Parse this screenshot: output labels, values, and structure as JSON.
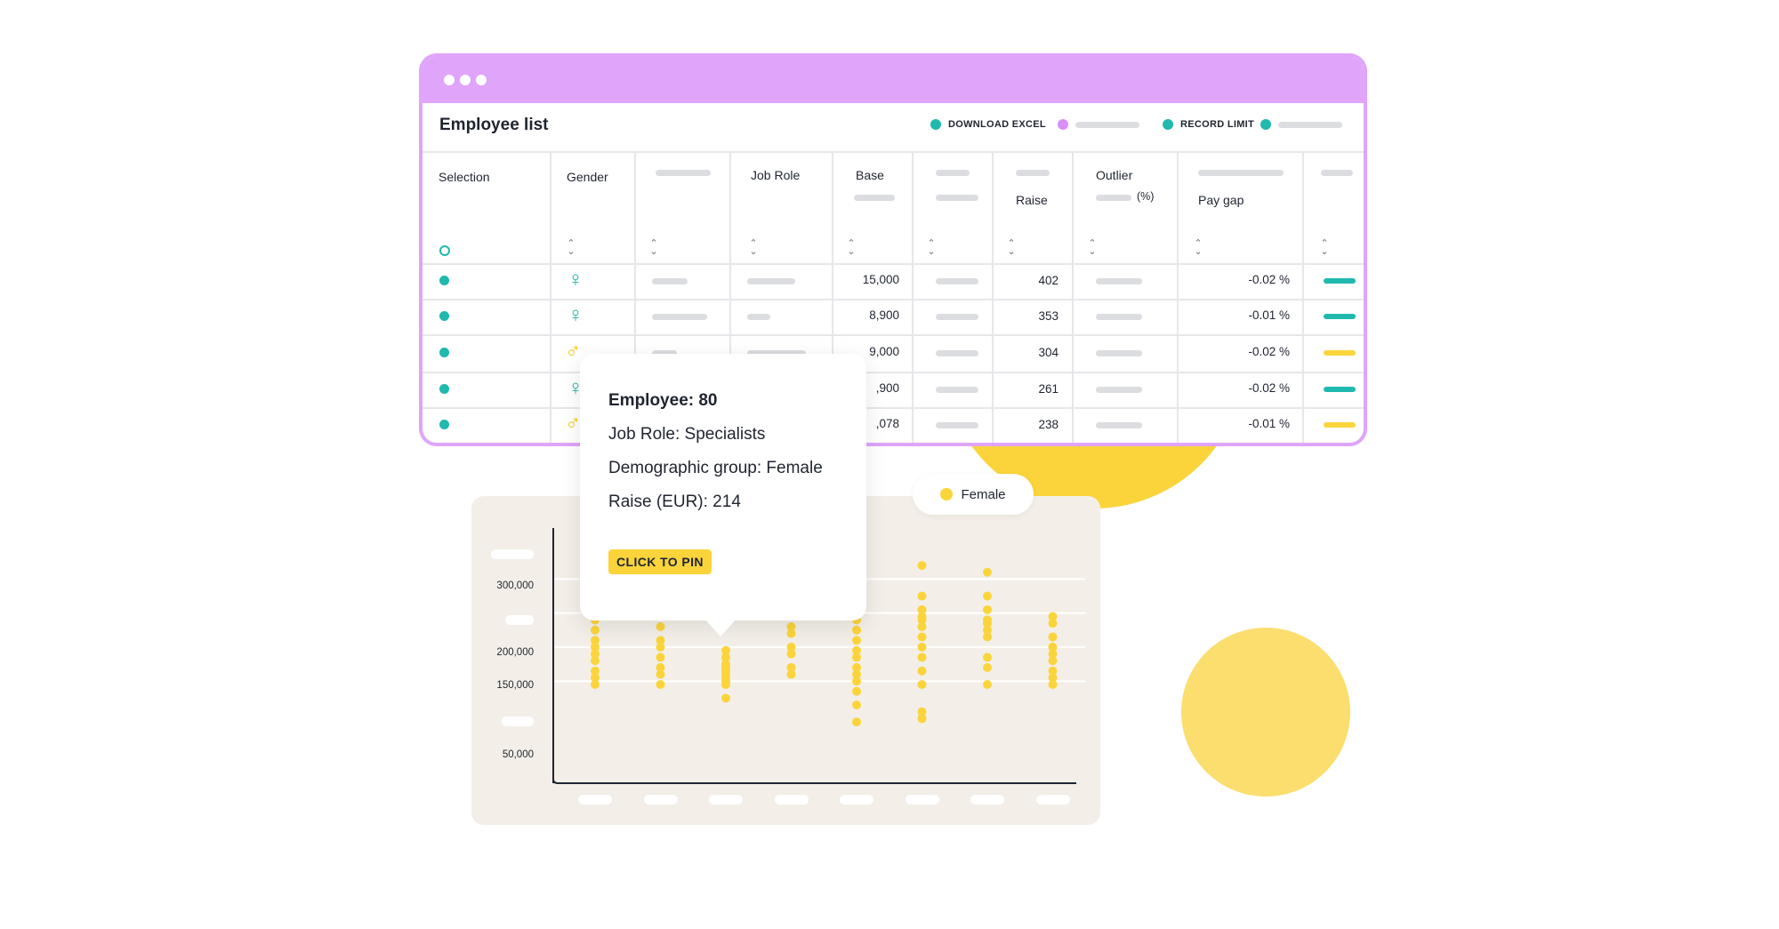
{
  "window": {
    "title": "Employee list",
    "actions": [
      {
        "label": "DOWNLOAD EXCEL",
        "color": "#20b9ad"
      },
      {
        "label": "",
        "color": "#d98ef8"
      },
      {
        "label": "RECORD LIMIT",
        "color": "#20b9ad"
      },
      {
        "label": "",
        "color": "#20b9ad"
      }
    ]
  },
  "table": {
    "columns": {
      "selection": "Selection",
      "gender": "Gender",
      "job_role": "Job Role",
      "base": "Base",
      "raise": "Raise",
      "outlier": "Outlier",
      "outlier_unit": "(%)",
      "pay_gap": "Pay gap"
    },
    "rows": [
      {
        "gender": "female",
        "base": "15,000",
        "raise": "402",
        "pay_gap": "-0.02 %",
        "bar_color": "#20b9ad"
      },
      {
        "gender": "female",
        "base": "8,900",
        "raise": "353",
        "pay_gap": "-0.01 %",
        "bar_color": "#20b9ad"
      },
      {
        "gender": "male",
        "base": "9,000",
        "raise": "304",
        "pay_gap": "-0.02 %",
        "bar_color": "#fbd43b"
      },
      {
        "gender": "female",
        "base": ",900",
        "raise": "261",
        "pay_gap": "-0.02 %",
        "bar_color": "#20b9ad"
      },
      {
        "gender": "male",
        "base": ",078",
        "raise": "238",
        "pay_gap": "-0.01 %",
        "bar_color": "#fbd43b"
      }
    ]
  },
  "tooltip": {
    "employee": "Employee: 80",
    "job_role": "Job Role: Specialists",
    "group": "Demographic group: Female",
    "raise": "Raise (EUR): 214",
    "pin_label": "CLICK TO PIN"
  },
  "legend": {
    "label": "Female",
    "color": "#fbd43b"
  },
  "chart_data": {
    "type": "scatter",
    "y_ticks": [
      "300,000",
      "200,000",
      "150,000",
      "50,000"
    ],
    "ylim": [
      0,
      375000
    ],
    "series": [
      {
        "color": "#fbd43b",
        "columns": [
          {
            "x": 1,
            "y": [
              145000,
              155000,
              165000,
              180000,
              190000,
              200000,
              210000,
              225000,
              240000
            ]
          },
          {
            "x": 2,
            "y": [
              145000,
              160000,
              170000,
              185000,
              200000,
              210000,
              230000
            ]
          },
          {
            "x": 3,
            "y": [
              125000,
              145000,
              150000,
              155000,
              160000,
              165000,
              170000,
              175000,
              185000,
              195000
            ]
          },
          {
            "x": 4,
            "y": [
              160000,
              170000,
              190000,
              200000,
              220000,
              230000
            ]
          },
          {
            "x": 5,
            "y": [
              90000,
              115000,
              135000,
              150000,
              160000,
              170000,
              185000,
              195000,
              210000,
              225000,
              240000
            ]
          },
          {
            "x": 6,
            "y": [
              95000,
              105000,
              145000,
              165000,
              185000,
              200000,
              215000,
              230000,
              240000,
              245000,
              255000,
              275000,
              320000
            ]
          },
          {
            "x": 7,
            "y": [
              145000,
              170000,
              185000,
              215000,
              225000,
              235000,
              240000,
              255000,
              275000,
              310000
            ]
          },
          {
            "x": 8,
            "y": [
              145000,
              155000,
              165000,
              180000,
              190000,
              200000,
              215000,
              235000,
              245000
            ]
          }
        ]
      }
    ]
  }
}
